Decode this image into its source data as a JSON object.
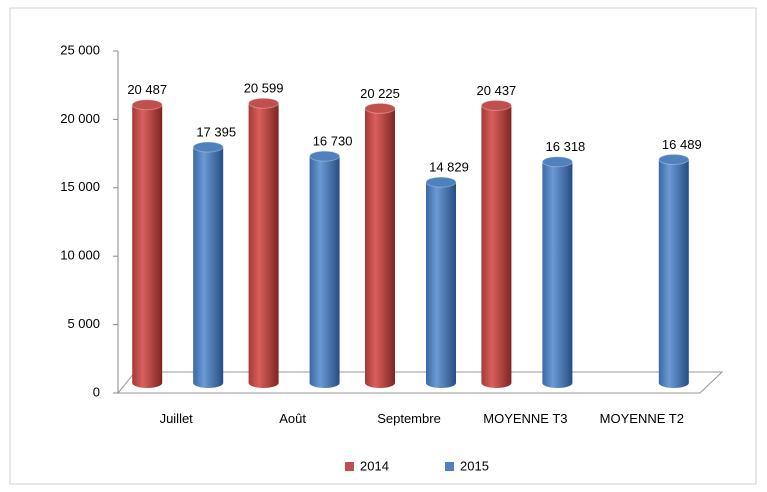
{
  "chart_data": {
    "type": "bar",
    "categories": [
      "Juillet",
      "Août",
      "Septembre",
      "MOYENNE T3",
      "MOYENNE T2"
    ],
    "series": [
      {
        "name": "2014",
        "color": "#c0504d",
        "values": [
          20487,
          20599,
          20225,
          20437,
          null
        ],
        "value_labels": [
          "20 487",
          "20 599",
          "20 225",
          "20 437",
          null
        ]
      },
      {
        "name": "2015",
        "color": "#4f81bd",
        "values": [
          17395,
          16730,
          14829,
          16318,
          16489
        ],
        "value_labels": [
          "17 395",
          "16 730",
          "14 829",
          "16 318",
          "16 489"
        ]
      }
    ],
    "ylim": [
      0,
      25000
    ],
    "yticks": [
      0,
      {
        "value": 5000,
        "label": "5 000"
      },
      {
        "value": 10000,
        "label": "10 000"
      },
      {
        "value": 15000,
        "label": "15 000"
      },
      {
        "value": 20000,
        "label": "20 000"
      },
      {
        "value": 25000,
        "label": "25 000"
      }
    ],
    "legend": "bottom"
  }
}
